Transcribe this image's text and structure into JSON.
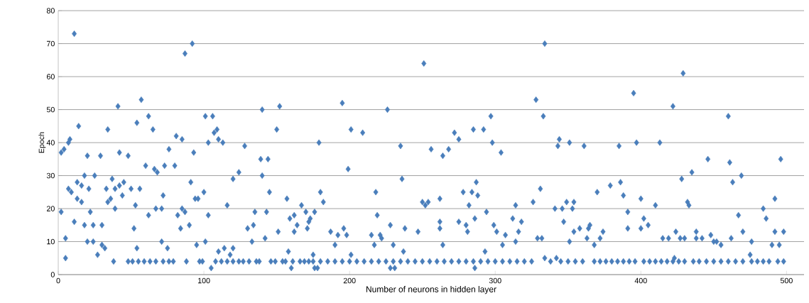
{
  "chart_data": {
    "type": "scatter",
    "xlabel": "Number of neurons in hidden layer",
    "ylabel": "Epoch",
    "xlim": [
      0,
      512
    ],
    "xticks": [
      0,
      100,
      200,
      300,
      400,
      500
    ],
    "ylim": [
      0,
      80
    ],
    "yticks": [
      0,
      10,
      20,
      30,
      40,
      50,
      60,
      70,
      80
    ],
    "grid": "y",
    "marker": "diamond",
    "series": [
      {
        "color": "#4a7ebb",
        "x": [
          11,
          87,
          92,
          57,
          41,
          62,
          54,
          65,
          34,
          14,
          101,
          106,
          107,
          109,
          140,
          152,
          150,
          81,
          85,
          8,
          7,
          103,
          110,
          113,
          128,
          2,
          4,
          42,
          76,
          93,
          20,
          29,
          48,
          139,
          144,
          60,
          73,
          80,
          66,
          68,
          124,
          18,
          25,
          140,
          37,
          91,
          120,
          13,
          45,
          42,
          16,
          7,
          21,
          33,
          39,
          50,
          56,
          9,
          100,
          145,
          44,
          72,
          16,
          34,
          13,
          36,
          94,
          96,
          157,
          53,
          116,
          2,
          22,
          87,
          135,
          143,
          39,
          67,
          71,
          85,
          62,
          82,
          103,
          159,
          162,
          11,
          18,
          24,
          30,
          90,
          134,
          164,
          52,
          84,
          130,
          151,
          162,
          5,
          142,
          20,
          24,
          71,
          101,
          133,
          30,
          95,
          32,
          54,
          75,
          114,
          120,
          110,
          158,
          118,
          27,
          5,
          105,
          160
        ],
        "values": [
          73,
          67,
          70,
          53,
          51,
          48,
          46,
          44,
          44,
          45,
          48,
          48,
          43,
          44,
          50,
          51,
          44,
          42,
          41,
          41,
          40,
          40,
          41,
          40,
          39,
          37,
          38,
          37,
          38,
          37,
          36,
          36,
          36,
          35,
          35,
          33,
          33,
          33,
          32,
          31,
          31,
          30,
          30,
          30,
          29,
          28,
          29,
          28,
          28,
          27,
          27,
          26,
          26,
          26,
          26,
          26,
          26,
          25,
          25,
          25,
          24,
          24,
          22,
          22,
          23,
          23,
          23,
          23,
          23,
          21,
          21,
          19,
          19,
          19,
          19,
          19,
          20,
          20,
          20,
          20,
          18,
          18,
          18,
          17,
          18,
          16,
          15,
          15,
          15,
          15,
          15,
          15,
          14,
          14,
          14,
          13,
          13,
          11,
          11,
          10,
          10,
          10,
          10,
          10,
          9,
          9,
          8,
          8,
          8,
          8,
          8,
          7,
          7,
          6,
          6,
          5,
          2,
          2
        ]
      },
      {
        "color": "#4a7ebb",
        "x": [
          251,
          195,
          226,
          328,
          333,
          201,
          209,
          179,
          235,
          297,
          285,
          292,
          272,
          275,
          298,
          304,
          256,
          264,
          268,
          199,
          236,
          287,
          331,
          180,
          218,
          278,
          284,
          288,
          182,
          250,
          254,
          252,
          262,
          282,
          326,
          314,
          167,
          170,
          176,
          173,
          172,
          171,
          219,
          294,
          286,
          228,
          262,
          275,
          280,
          312,
          318,
          299,
          187,
          192,
          196,
          198,
          215,
          221,
          222,
          238,
          247,
          262,
          281,
          301,
          307,
          316,
          329,
          332,
          190,
          217,
          230,
          264,
          305,
          314,
          175,
          201,
          237,
          293,
          176,
          178,
          228,
          231,
          286,
          334,
          334
        ],
        "values": [
          64,
          52,
          50,
          53,
          48,
          44,
          43,
          40,
          39,
          48,
          44,
          44,
          43,
          41,
          40,
          37,
          38,
          36,
          38,
          32,
          29,
          28,
          26,
          25,
          25,
          25,
          25,
          24,
          22,
          22,
          22,
          21,
          23,
          21,
          22,
          21,
          21,
          19,
          19,
          17,
          16,
          14,
          18,
          19,
          17,
          15,
          16,
          16,
          15,
          17,
          16,
          15,
          13,
          12,
          14,
          12,
          12,
          12,
          11,
          14,
          13,
          14,
          13,
          13,
          12,
          13,
          11,
          11,
          9,
          9,
          9,
          9,
          9,
          10,
          6,
          6,
          7,
          7,
          2,
          2,
          2,
          2,
          2,
          5,
          70
        ]
      },
      {
        "color": "#4a7ebb",
        "x": [
          344,
          343,
          351,
          361,
          385,
          397,
          395,
          413,
          422,
          429,
          460,
          446,
          461,
          496,
          435,
          428,
          469,
          463,
          379,
          386,
          370,
          388,
          400,
          492,
          341,
          346,
          349,
          353,
          354,
          410,
          432,
          433,
          391,
          484,
          467,
          402,
          486,
          347,
          365,
          364,
          358,
          354,
          391,
          400,
          405,
          374,
          424,
          438,
          492,
          498,
          448,
          415,
          419,
          427,
          430,
          438,
          442,
          462,
          470,
          363,
          372,
          351,
          368,
          450,
          452,
          455,
          476,
          490,
          495,
          475,
          342,
          423
        ],
        "values": [
          41,
          39,
          40,
          39,
          39,
          40,
          55,
          40,
          51,
          61,
          48,
          35,
          34,
          35,
          31,
          29,
          30,
          28,
          27,
          28,
          25,
          24,
          23,
          23,
          20,
          20,
          22,
          20,
          22,
          21,
          22,
          21,
          19,
          20,
          18,
          17,
          17,
          16,
          15,
          14,
          14,
          13,
          14,
          14,
          15,
          13,
          13,
          13,
          13,
          13,
          12,
          11,
          11,
          11,
          11,
          11,
          11,
          11,
          13,
          11,
          11,
          10,
          9,
          10,
          10,
          9,
          10,
          9,
          9,
          6,
          5,
          5
        ]
      },
      {
        "color": "#4a7ebb",
        "x": [
          38,
          48,
          51,
          55,
          59,
          63,
          67,
          72,
          76,
          79,
          88,
          97,
          99,
          108,
          112,
          116,
          120,
          124,
          127,
          131,
          136,
          138,
          146,
          149,
          154,
          156,
          161,
          166,
          169,
          172,
          175,
          180,
          185,
          190,
          195,
          200,
          205,
          210,
          215,
          220,
          225,
          230,
          235,
          240,
          245,
          250,
          255,
          260,
          265,
          270,
          275,
          280,
          285,
          290,
          295,
          300,
          305,
          310,
          315,
          320,
          325,
          338,
          345,
          350,
          355,
          360,
          368,
          372,
          376,
          380,
          384,
          388,
          392,
          396,
          402,
          406,
          410,
          414,
          418,
          422,
          426,
          430,
          436,
          440,
          445,
          450,
          455,
          460,
          465,
          470,
          476,
          480,
          484,
          488,
          494,
          498
        ],
        "values": [
          4,
          4,
          4,
          4,
          4,
          4,
          4,
          4,
          4,
          4,
          4,
          4,
          4,
          4,
          4,
          4,
          4,
          4,
          4,
          4,
          4,
          4,
          4,
          4,
          4,
          4,
          4,
          4,
          4,
          4,
          4,
          4,
          4,
          4,
          4,
          4,
          4,
          4,
          4,
          4,
          4,
          4,
          4,
          4,
          4,
          4,
          4,
          4,
          4,
          4,
          4,
          4,
          4,
          4,
          4,
          4,
          4,
          4,
          4,
          4,
          4,
          4,
          4,
          4,
          4,
          4,
          4,
          4,
          4,
          4,
          4,
          4,
          4,
          4,
          4,
          4,
          4,
          4,
          4,
          4,
          4,
          4,
          4,
          4,
          4,
          4,
          4,
          4,
          4,
          4,
          4,
          4,
          4,
          4,
          4,
          4
        ]
      }
    ]
  }
}
